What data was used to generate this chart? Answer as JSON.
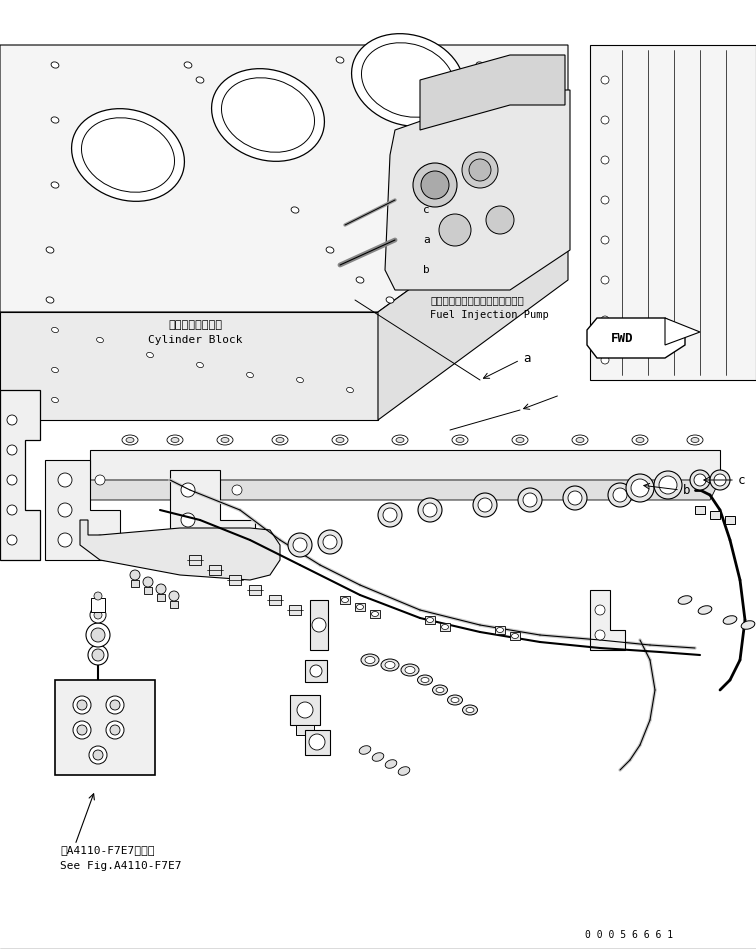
{
  "bg_color": "#ffffff",
  "line_color": "#000000",
  "fig_width": 7.56,
  "fig_height": 9.49,
  "dpi": 100,
  "labels": {
    "cylinder_block_jp": "シリンダブロック",
    "cylinder_block_en": "Cylinder Block",
    "fuel_pump_jp": "フェエルインジェクションポンプ",
    "fuel_pump_en": "Fuel Injection Pump",
    "see_fig_jp": "第A4110-F7E7図参照",
    "see_fig_en": "See Fig.A4110-F7E7",
    "part_number": "0 0 0 5 6 6 6 1",
    "fwd_label": "FWD"
  }
}
